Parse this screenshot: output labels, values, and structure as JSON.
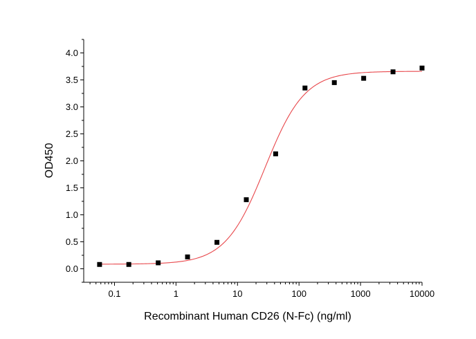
{
  "chart_data": {
    "type": "scatter",
    "xlabel": "Recombinant Human CD26 (N-Fc) (ng/ml)",
    "ylabel": "OD450",
    "xscale": "log",
    "xlim": [
      0.0316,
      10000
    ],
    "ylim": [
      -0.25,
      4.25
    ],
    "x_ticks": [
      0.1,
      1,
      10,
      100,
      1000,
      10000
    ],
    "x_tick_labels": [
      "0.1",
      "1",
      "10",
      "100",
      "1000",
      "10000"
    ],
    "y_ticks": [
      0,
      0.5,
      1,
      1.5,
      2,
      2.5,
      3,
      3.5,
      4
    ],
    "y_tick_labels": [
      "0.0",
      "0.5",
      "1.0",
      "1.5",
      "2.0",
      "2.5",
      "3.0",
      "3.5",
      "4.0"
    ],
    "grid": false,
    "series": [
      {
        "kind": "points",
        "color": "#000000",
        "marker": "square",
        "x": [
          0.0572,
          0.171,
          0.514,
          1.54,
          4.63,
          13.9,
          41.7,
          125,
          375,
          1125,
          3375,
          10000
        ],
        "y": [
          0.08,
          0.08,
          0.11,
          0.22,
          0.49,
          1.28,
          2.13,
          3.35,
          3.45,
          3.53,
          3.65,
          3.72
        ]
      },
      {
        "kind": "fit",
        "color": "#e8474b",
        "model": "4PL",
        "bottom": 0.085,
        "top": 3.66,
        "ec50": 28,
        "hill": 1.35,
        "x_range": [
          0.0572,
          10000
        ]
      }
    ]
  }
}
